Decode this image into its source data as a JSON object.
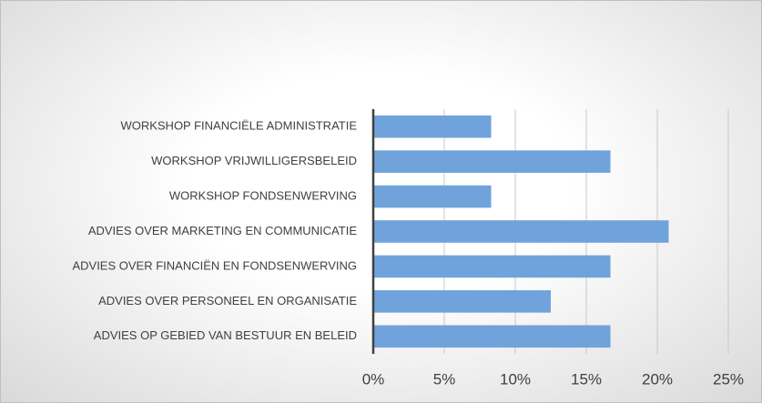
{
  "chart_data": {
    "type": "bar",
    "orientation": "horizontal",
    "categories": [
      "WORKSHOP FINANCIËLE ADMINISTRATIE",
      "WORKSHOP VRIJWILLIGERSBELEID",
      "WORKSHOP FONDSENWERVING",
      "ADVIES OVER MARKETING EN COMMUNICATIE",
      "ADVIES OVER FINANCIËN EN FONDSENWERVING",
      "ADVIES OVER PERSONEEL EN ORGANISATIE",
      "ADVIES OP GEBIED VAN BESTUUR EN BELEID"
    ],
    "values": [
      8.3,
      16.7,
      8.3,
      20.8,
      16.7,
      12.5,
      16.7
    ],
    "color": "#70a3dc",
    "xlim": [
      0,
      25
    ],
    "xticks": [
      {
        "value": 0,
        "label": "0%"
      },
      {
        "value": 5,
        "label": "5%"
      },
      {
        "value": 10,
        "label": "10%"
      },
      {
        "value": 15,
        "label": "15%"
      },
      {
        "value": 20,
        "label": "20%"
      },
      {
        "value": 25,
        "label": "25%"
      }
    ],
    "grid": true
  }
}
